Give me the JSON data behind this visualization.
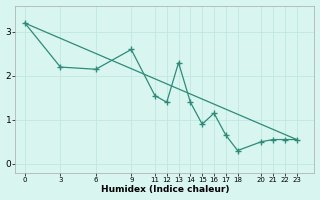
{
  "line1_x": [
    0,
    3,
    6,
    9,
    11,
    12,
    13,
    14,
    15,
    16,
    17,
    18,
    20,
    21,
    22,
    23
  ],
  "line1_y": [
    3.2,
    2.2,
    2.15,
    2.6,
    1.55,
    1.4,
    2.3,
    1.4,
    0.9,
    1.15,
    0.65,
    0.3,
    0.5,
    0.55,
    0.55,
    0.55
  ],
  "line2_x": [
    0,
    23
  ],
  "line2_y": [
    3.2,
    0.55
  ],
  "line_color": "#2e8b7a",
  "background_color": "#d8f5f0",
  "grid_color": "#c0e8e0",
  "xlabel": "Humidex (Indice chaleur)",
  "xticks": [
    0,
    3,
    6,
    9,
    11,
    12,
    13,
    14,
    15,
    16,
    17,
    18,
    20,
    21,
    22,
    23
  ],
  "yticks": [
    0,
    1,
    2,
    3
  ],
  "ylim": [
    -0.2,
    3.6
  ],
  "xlim": [
    -0.8,
    24.5
  ]
}
